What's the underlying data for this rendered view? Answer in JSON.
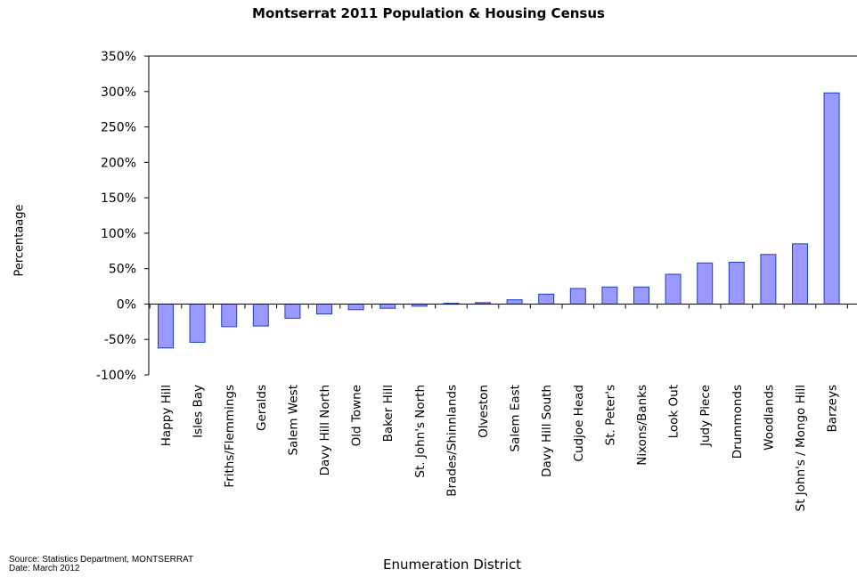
{
  "chart_data": {
    "type": "bar",
    "title": "Montserrat 2011 Population & Housing Census",
    "xlabel": "Enumeration District",
    "ylabel": "Percentaage",
    "ylim": [
      -100,
      350
    ],
    "yticks": [
      "350%",
      "300%",
      "250%",
      "200%",
      "150%",
      "100%",
      "50%",
      "0%",
      "-50%",
      "-100%"
    ],
    "ytick_values": [
      350,
      300,
      250,
      200,
      150,
      100,
      50,
      0,
      -50,
      -100
    ],
    "categories": [
      "Happy Hill",
      "Isles Bay",
      "Friths/Flemmings",
      "Geralds",
      "Salem West",
      "Davy Hill North",
      "Old Towne",
      "Baker Hill",
      "St. John's North",
      "Brades/Shinnlands",
      "Olveston",
      "Salem East",
      "Davy Hill South",
      "Cudjoe Head",
      "St. Peter's",
      "Nixons/Banks",
      "Look Out",
      "Judy Piece",
      "Drummonds",
      "Woodlands",
      "St John's / Mongo Hill",
      "Barzeys"
    ],
    "values": [
      -62,
      -54,
      -32,
      -31,
      -20,
      -14,
      -8,
      -6,
      -3,
      1,
      2,
      6,
      14,
      22,
      24,
      24,
      42,
      58,
      59,
      70,
      85,
      298
    ],
    "grid": false,
    "legend": "none",
    "bar_color": "#9999ff",
    "bar_edge_color": "#1f3fbf"
  },
  "footer": {
    "source": "Source:  Statistics Department,  MONTSERRAT",
    "date": "Date:  March 2012"
  }
}
